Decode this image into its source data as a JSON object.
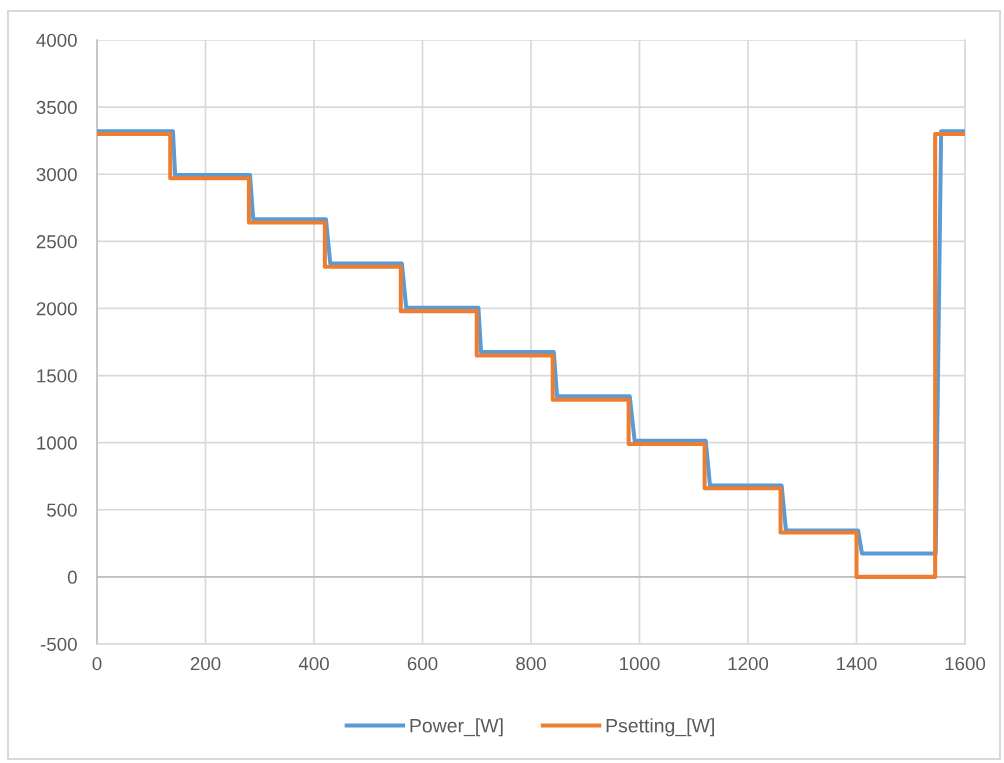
{
  "chart_data": {
    "type": "line",
    "series": [
      {
        "name": "Power_[W]",
        "color": "#5b9bd5",
        "x": [
          0,
          140,
          144,
          282,
          288,
          422,
          430,
          562,
          570,
          703,
          708,
          842,
          848,
          982,
          991,
          1122,
          1130,
          1262,
          1270,
          1403,
          1410,
          1546,
          1556,
          1600
        ],
        "values": [
          3320,
          3320,
          2995,
          2995,
          2665,
          2665,
          2335,
          2335,
          2005,
          2005,
          1675,
          1675,
          1345,
          1345,
          1015,
          1015,
          680,
          680,
          345,
          345,
          175,
          175,
          3320,
          3320
        ]
      },
      {
        "name": "Psetting_[W]",
        "color": "#ed7d31",
        "x": [
          0,
          135,
          135,
          280,
          280,
          420,
          420,
          560,
          560,
          700,
          700,
          840,
          840,
          980,
          980,
          1120,
          1120,
          1260,
          1260,
          1400,
          1400,
          1545,
          1545,
          1600
        ],
        "values": [
          3300,
          3300,
          2970,
          2970,
          2640,
          2640,
          2310,
          2310,
          1980,
          1980,
          1650,
          1650,
          1320,
          1320,
          990,
          990,
          660,
          660,
          330,
          330,
          0,
          0,
          3300,
          3300
        ]
      }
    ],
    "xlim": [
      0,
      1600
    ],
    "ylim": [
      -500,
      4000
    ],
    "xticks": [
      0,
      200,
      400,
      600,
      800,
      1000,
      1200,
      1400,
      1600
    ],
    "yticks": [
      -500,
      0,
      500,
      1000,
      1500,
      2000,
      2500,
      3000,
      3500,
      4000
    ],
    "grid": true,
    "legend": "bottom"
  }
}
